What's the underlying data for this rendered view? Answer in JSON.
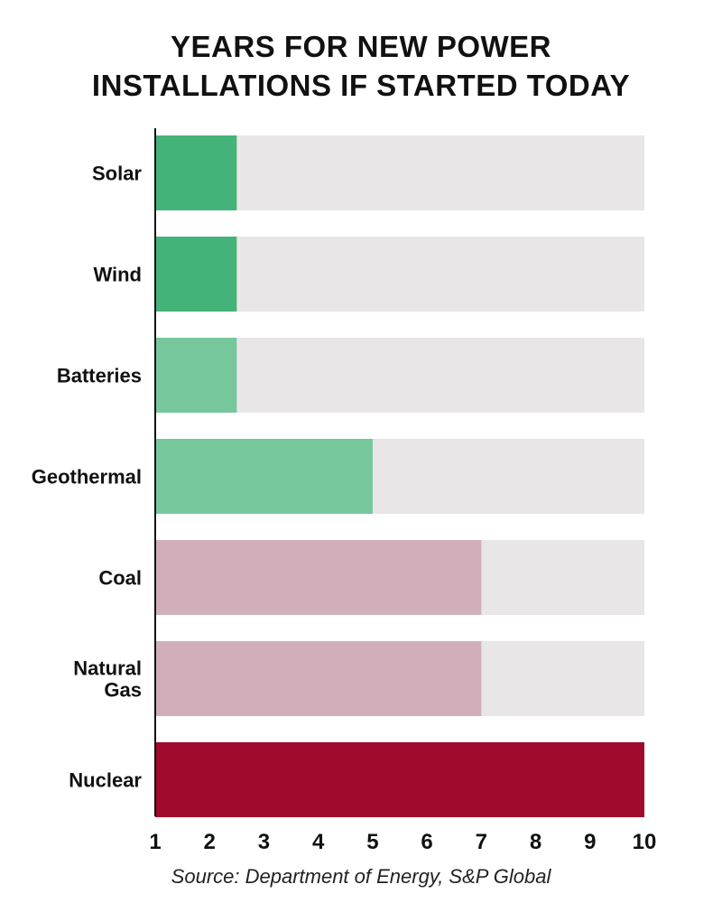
{
  "chart_data": {
    "type": "bar",
    "orientation": "horizontal",
    "title_lines": [
      "YEARS FOR NEW POWER",
      "INSTALLATIONS IF STARTED TODAY"
    ],
    "categories": [
      [
        "Solar"
      ],
      [
        "Wind"
      ],
      [
        "Batteries"
      ],
      [
        "Geothermal"
      ],
      [
        "Coal"
      ],
      [
        "Natural",
        "Gas"
      ],
      [
        "Nuclear"
      ]
    ],
    "values": [
      2.5,
      2.5,
      2.5,
      5,
      7,
      7,
      10
    ],
    "bar_colors": [
      "#43b37a",
      "#43b37a",
      "#76c79c",
      "#76c79c",
      "#d1afba",
      "#d1afba",
      "#a00a2c"
    ],
    "track_color": "#e8e6e7",
    "xlim": [
      1,
      10
    ],
    "xticks": [
      "1",
      "2",
      "3",
      "4",
      "5",
      "6",
      "7",
      "8",
      "9",
      "10"
    ],
    "xlabel": "",
    "ylabel": "",
    "grid": false,
    "source": "Source: Department of Energy, S&P Global"
  }
}
